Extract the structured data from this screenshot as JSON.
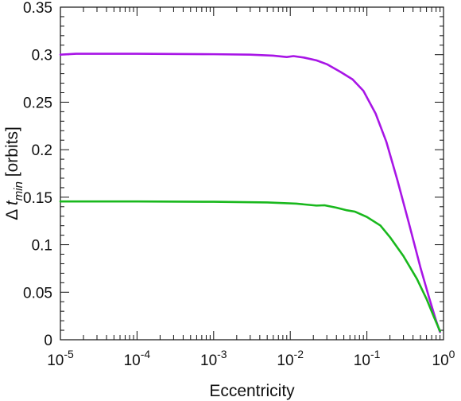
{
  "chart_data": {
    "type": "line",
    "title": "",
    "xlabel": "Eccentricity",
    "ylabel": {
      "prefix": "Δ ",
      "var": "t",
      "sub": "min",
      "suffix": " [orbits]"
    },
    "xscale": "log",
    "xlim": [
      1e-05,
      1
    ],
    "ylim": [
      0,
      0.35
    ],
    "grid": false,
    "legend": "none",
    "x_ticks": [
      {
        "value": 1e-05,
        "base": "10",
        "exp": "-5"
      },
      {
        "value": 0.0001,
        "base": "10",
        "exp": "-4"
      },
      {
        "value": 0.001,
        "base": "10",
        "exp": "-3"
      },
      {
        "value": 0.01,
        "base": "10",
        "exp": "-2"
      },
      {
        "value": 0.1,
        "base": "10",
        "exp": "-1"
      },
      {
        "value": 1,
        "base": "10",
        "exp": "0"
      }
    ],
    "y_ticks": [
      {
        "value": 0,
        "label": "0"
      },
      {
        "value": 0.05,
        "label": "0.05"
      },
      {
        "value": 0.1,
        "label": "0.1"
      },
      {
        "value": 0.15,
        "label": "0.15"
      },
      {
        "value": 0.2,
        "label": "0.2"
      },
      {
        "value": 0.25,
        "label": "0.25"
      },
      {
        "value": 0.3,
        "label": "0.3"
      },
      {
        "value": 0.35,
        "label": "0.35"
      }
    ],
    "series": [
      {
        "color": "#a815e6",
        "points": [
          [
            1e-05,
            0.3
          ],
          [
            1.6e-05,
            0.301
          ],
          [
            0.0001,
            0.301
          ],
          [
            0.001,
            0.3005
          ],
          [
            0.003,
            0.3
          ],
          [
            0.006,
            0.299
          ],
          [
            0.009,
            0.2975
          ],
          [
            0.011,
            0.2985
          ],
          [
            0.015,
            0.297
          ],
          [
            0.022,
            0.294
          ],
          [
            0.03,
            0.29
          ],
          [
            0.045,
            0.282
          ],
          [
            0.065,
            0.274
          ],
          [
            0.09,
            0.262
          ],
          [
            0.13,
            0.238
          ],
          [
            0.18,
            0.208
          ],
          [
            0.25,
            0.168
          ],
          [
            0.35,
            0.124
          ],
          [
            0.5,
            0.076
          ],
          [
            0.65,
            0.044
          ],
          [
            0.8,
            0.02
          ],
          [
            0.9,
            0.008
          ]
        ]
      },
      {
        "color": "#19b81d",
        "points": [
          [
            1e-05,
            0.1455
          ],
          [
            0.0001,
            0.1455
          ],
          [
            0.001,
            0.1452
          ],
          [
            0.005,
            0.1445
          ],
          [
            0.012,
            0.1432
          ],
          [
            0.022,
            0.1412
          ],
          [
            0.028,
            0.1415
          ],
          [
            0.04,
            0.139
          ],
          [
            0.055,
            0.1362
          ],
          [
            0.07,
            0.1348
          ],
          [
            0.1,
            0.1292
          ],
          [
            0.15,
            0.1202
          ],
          [
            0.2,
            0.108
          ],
          [
            0.3,
            0.088
          ],
          [
            0.45,
            0.064
          ],
          [
            0.6,
            0.043
          ],
          [
            0.75,
            0.024
          ],
          [
            0.9,
            0.009
          ]
        ]
      }
    ]
  }
}
